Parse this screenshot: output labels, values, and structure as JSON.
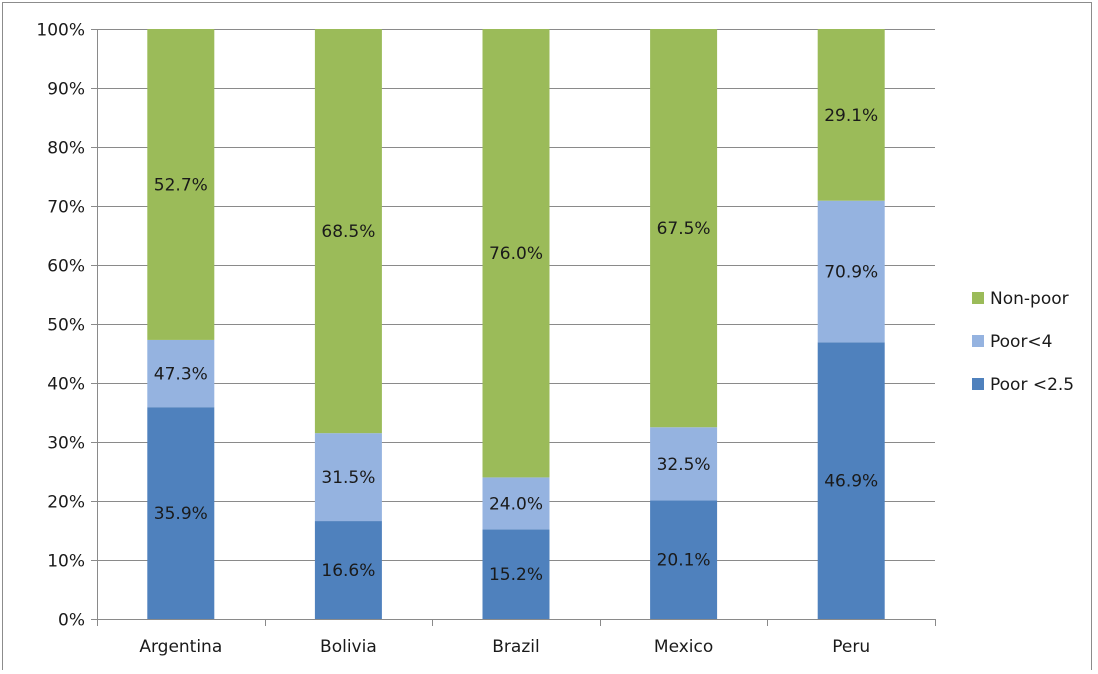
{
  "chart_data": {
    "type": "bar",
    "stacked": true,
    "title": "",
    "xlabel": "",
    "ylabel": "",
    "ylim": [
      0,
      100
    ],
    "y_ticks": [
      "0%",
      "10%",
      "20%",
      "30%",
      "40%",
      "50%",
      "60%",
      "70%",
      "80%",
      "90%",
      "100%"
    ],
    "grid": true,
    "legend_position": "right",
    "categories": [
      "Argentina",
      "Bolivia",
      "Brazil",
      "Mexico",
      "Peru"
    ],
    "series": [
      {
        "name": "Poor <2.5",
        "color": "#4f81bd",
        "values": [
          35.9,
          16.6,
          15.2,
          20.1,
          46.9
        ],
        "labels": [
          "35.9%",
          "16.6%",
          "15.2%",
          "20.1%",
          "46.9%"
        ]
      },
      {
        "name": "Poor<4",
        "color": "#95b3e0",
        "values": [
          11.4,
          14.9,
          8.8,
          12.4,
          24.0
        ],
        "labels": [
          "47.3%",
          "31.5%",
          "24.0%",
          "32.5%",
          "70.9%"
        ]
      },
      {
        "name": "Non-poor",
        "color": "#9bbb59",
        "values": [
          52.7,
          68.5,
          76.0,
          67.5,
          29.1
        ],
        "labels": [
          "52.7%",
          "68.5%",
          "76.0%",
          "67.5%",
          "29.1%"
        ]
      }
    ],
    "legend_order": [
      "Non-poor",
      "Poor<4",
      "Poor <2.5"
    ]
  }
}
